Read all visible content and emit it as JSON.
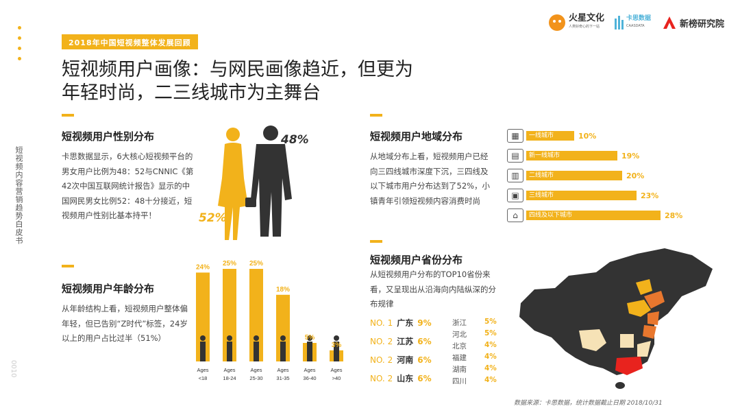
{
  "header": {
    "tag": "2018年中国短视频整体发展回顾",
    "title_line1": "短视频用户画像：与网民画像趋近，但更为",
    "title_line2": "年轻时尚，二三线城市为主舞台"
  },
  "logos": {
    "logo1_name": "火星文化",
    "logo1_sub": "人类好奇心的下一站",
    "logo2_name": "卡思数据",
    "logo2_sub": "CAASDATA",
    "logo3_name": "新榜研究院"
  },
  "sidebar": {
    "vertical_title": "短视频内容营销趋势白皮书",
    "page_number": "0010"
  },
  "gender": {
    "title": "短视频用户性别分布",
    "text": "卡思数据显示，6大核心短视频平台的男女用户比例为48：52与CNNIC《第42次中国互联网统计报告》显示的中国网民男女比例52：48十分接近，短视频用户性别比基本持平！",
    "female_pct": "52%",
    "male_pct": "48%"
  },
  "age": {
    "title": "短视频用户年龄分布",
    "text": "从年龄结构上看，短视频用户整体偏年轻，但已告别“Z时代”标签，24岁以上的用户占比过半（51%）",
    "axis_prefix": "Ages"
  },
  "region": {
    "title": "短视频用户地域分布",
    "text": "从地域分布上看，短视频用户已经向三四线城市深度下沉，三四线及以下城市用户分布达到了52%，小镇青年引领短视频内容消费时尚"
  },
  "province": {
    "title": "短视频用户省份分布",
    "text": "从短视频用户分布的TOP10省份来看，又呈现出从沿海向内陆纵深的分布规律",
    "top": [
      {
        "rank": "NO. 1",
        "name": "广东",
        "pct": "9%"
      },
      {
        "rank": "NO. 2",
        "name": "江苏",
        "pct": "6%"
      },
      {
        "rank": "NO. 2",
        "name": "河南",
        "pct": "6%"
      },
      {
        "rank": "NO. 2",
        "name": "山东",
        "pct": "6%"
      }
    ],
    "others": [
      {
        "name": "浙江",
        "pct": "5%"
      },
      {
        "name": "河北",
        "pct": "5%"
      },
      {
        "name": "北京",
        "pct": "4%"
      },
      {
        "name": "福建",
        "pct": "4%"
      },
      {
        "name": "湖南",
        "pct": "4%"
      },
      {
        "name": "四川",
        "pct": "4%"
      }
    ]
  },
  "source": "数据来源：卡思数据，统计数据截止日期 2018/10/31",
  "colors": {
    "accent": "#f2b21b",
    "map_dark": "#333333",
    "map_orange": "#e8772e",
    "map_red": "#e8231e",
    "map_light": "#f6e2b6"
  },
  "chart_data": [
    {
      "type": "bar",
      "categories": [
        "<18",
        "18-24",
        "25-30",
        "31-35",
        "36-40",
        ">40"
      ],
      "values": [
        24,
        25,
        25,
        18,
        5,
        3
      ],
      "value_labels": [
        "24%",
        "25%",
        "25%",
        "18%",
        "5%",
        "3%"
      ],
      "title": "短视频用户年龄分布",
      "ylim": [
        0,
        25
      ]
    },
    {
      "type": "bar",
      "orientation": "horizontal",
      "categories": [
        "一线城市",
        "新一线城市",
        "二线城市",
        "三线城市",
        "四线及以下城市"
      ],
      "values": [
        10,
        19,
        20,
        23,
        28
      ],
      "value_labels": [
        "10%",
        "19%",
        "20%",
        "23%",
        "28%"
      ],
      "title": "短视频用户地域分布",
      "xlim": [
        0,
        28
      ]
    }
  ]
}
